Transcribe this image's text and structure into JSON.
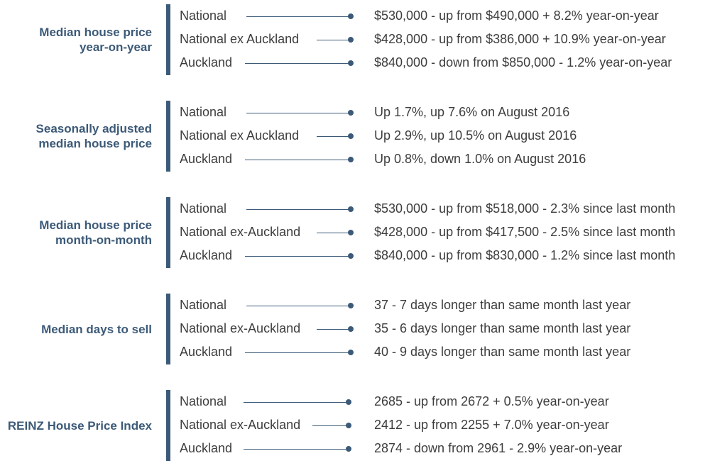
{
  "sections": [
    {
      "heading": [
        "Median house price",
        "year-on-year"
      ],
      "rows": [
        {
          "label": "National",
          "value": "$530,000 - up from $490,000 + 8.2% year-on-year"
        },
        {
          "label": "National ex Auckland",
          "value": "$428,000 - up from $386,000 + 10.9% year-on-year"
        },
        {
          "label": "Auckland",
          "value": "$840,000 - down from $850,000 - 1.2% year-on-year"
        }
      ]
    },
    {
      "heading": [
        "Seasonally adjusted",
        "median house price"
      ],
      "rows": [
        {
          "label": "National",
          "value": "Up 1.7%, up 7.6% on August 2016"
        },
        {
          "label": "National ex Auckland",
          "value": "Up 2.9%, up 10.5% on August 2016"
        },
        {
          "label": "Auckland",
          "value": "Up 0.8%, down 1.0% on August 2016"
        }
      ]
    },
    {
      "heading": [
        "Median house price",
        "month-on-month"
      ],
      "rows": [
        {
          "label": "National",
          "value": "$530,000 - up from $518,000 - 2.3% since last month"
        },
        {
          "label": "National ex-Auckland",
          "value": "$428,000 - up from $417,500 - 2.5% since last month"
        },
        {
          "label": "Auckland",
          "value": "$840,000 - up from $830,000 - 1.2% since last month"
        }
      ]
    },
    {
      "heading": [
        "Median days to sell"
      ],
      "rows": [
        {
          "label": "National",
          "value": "37 - 7 days longer than same month last year"
        },
        {
          "label": "National ex-Auckland",
          "value": "35 - 6 days longer than same month last year"
        },
        {
          "label": "Auckland",
          "value": "40 - 9 days longer than same month last year"
        }
      ]
    },
    {
      "heading": [
        "REINZ House Price Index"
      ],
      "rows": [
        {
          "label": "National",
          "value": "2685 - up from 2672 + 0.5% year-on-year"
        },
        {
          "label": "National ex-Auckland",
          "value": "2412 - up from 2255 + 7.0% year-on-year"
        },
        {
          "label": "Auckland",
          "value": "2874 - down from 2961 - 2.9% year-on-year"
        }
      ]
    }
  ]
}
